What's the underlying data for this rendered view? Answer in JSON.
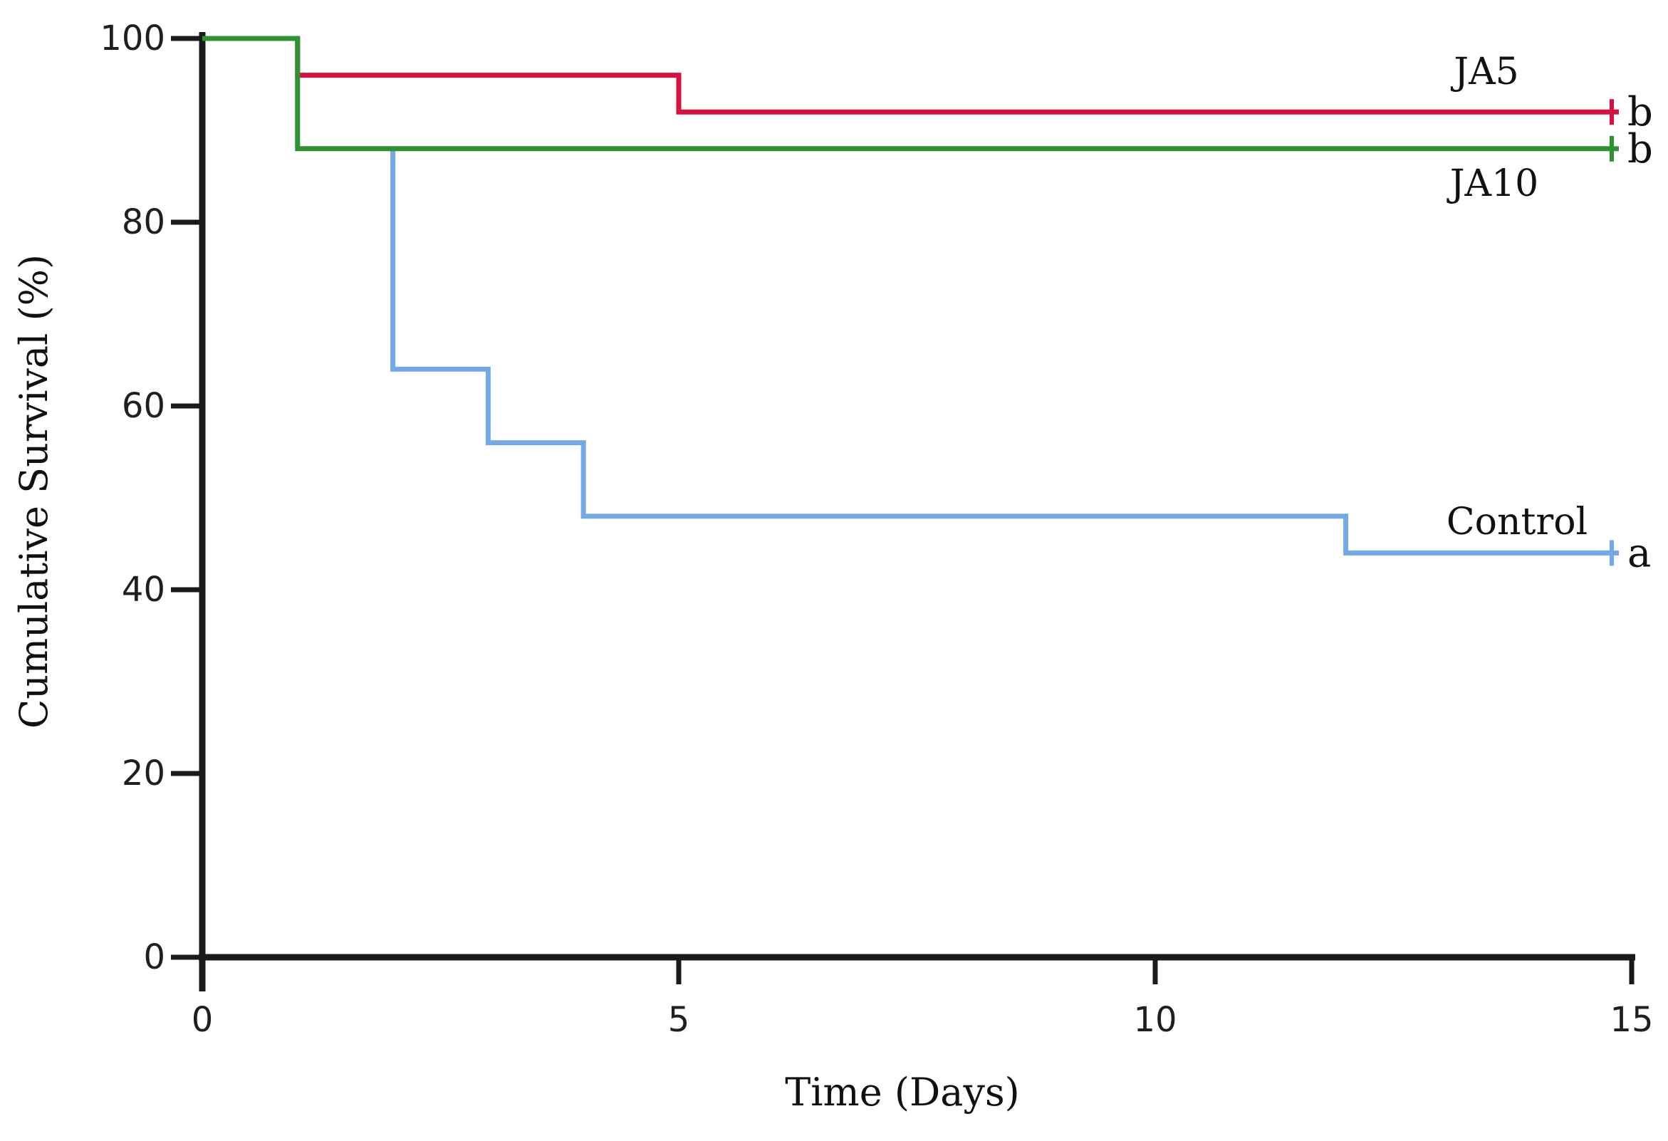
{
  "figure": {
    "background_color": "#ffffff",
    "axis_color": "#1a1a1a"
  },
  "chart_data": {
    "type": "line",
    "subtype": "kaplan-meier-step-survival",
    "title": "",
    "xlabel": "Time (Days)",
    "ylabel": "Cumulative Survival (%)",
    "xlim": [
      0,
      15
    ],
    "ylim": [
      0,
      100
    ],
    "x_ticks": [
      0,
      5,
      10,
      15
    ],
    "y_ticks": [
      0,
      20,
      40,
      60,
      80,
      100
    ],
    "grid": false,
    "legend_position": "end-of-line-labels",
    "series": [
      {
        "name": "Control",
        "color": "#74a9e8",
        "significance_letter": "a",
        "censor_mark_at_end": true,
        "points": [
          [
            2,
            88
          ],
          [
            2,
            64
          ],
          [
            3,
            64
          ],
          [
            3,
            56
          ],
          [
            4,
            56
          ],
          [
            4,
            48
          ],
          [
            12,
            48
          ],
          [
            12,
            44
          ],
          [
            15,
            44
          ]
        ]
      },
      {
        "name": "JA5",
        "color": "#d6103f",
        "significance_letter": "b",
        "censor_mark_at_end": true,
        "points": [
          [
            0,
            100
          ],
          [
            1,
            100
          ],
          [
            1,
            96
          ],
          [
            5,
            96
          ],
          [
            5,
            92
          ],
          [
            15,
            92
          ]
        ]
      },
      {
        "name": "JA10",
        "color": "#2e9232",
        "significance_letter": "b",
        "censor_mark_at_end": true,
        "points": [
          [
            0,
            100
          ],
          [
            1,
            100
          ],
          [
            1,
            88
          ],
          [
            15,
            88
          ]
        ]
      }
    ]
  }
}
